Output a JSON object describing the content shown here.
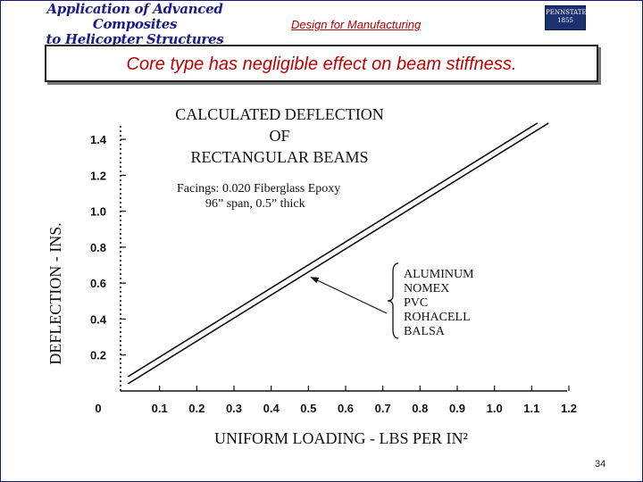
{
  "slide": {
    "course_title_line1": "Application of Advanced Composites",
    "course_title_line2": "to Helicopter Structures",
    "section_title": "Design for Manufacturing",
    "logo_text_line1": "PENNSTATE",
    "logo_text_line2": "1855",
    "headline": "Core type has negligible effect on beam stiffness.",
    "page_number": "34"
  },
  "colors": {
    "course_title": "#1a1a8c",
    "section_title": "#b00000",
    "headline": "#c00000",
    "logo_bg": "#1c3170",
    "ink": "#111111"
  },
  "chart_data": {
    "type": "line",
    "title_lines": [
      "CALCULATED DEFLECTION",
      "OF",
      "RECTANGULAR BEAMS"
    ],
    "note_lines": [
      "Facings: 0.020 Fiberglass Epoxy",
      "96” span, 0.5” thick"
    ],
    "xlabel": "UNIFORM LOADING - LBS PER IN²",
    "ylabel": "DEFLECTION - INS.",
    "x_ticks": [
      0.1,
      0.2,
      0.3,
      0.4,
      0.5,
      0.6,
      0.7,
      0.8,
      0.9,
      1.0,
      1.1,
      1.2
    ],
    "x_tick_labels": [
      "0.1",
      "0.2",
      "0.3",
      "0.4",
      "0.5",
      "0.6",
      "0.7",
      "0.8",
      "0.9",
      "1.0",
      "1.1",
      "1.2"
    ],
    "y_ticks": [
      0.2,
      0.4,
      0.6,
      0.8,
      1.0,
      1.2,
      1.4
    ],
    "y_tick_labels": [
      "0.2",
      "0.4",
      "0.6",
      "0.8",
      "1.0",
      "1.2",
      "1.4"
    ],
    "origin_label": "0",
    "xlim": [
      0,
      1.2
    ],
    "ylim": [
      0,
      1.48
    ],
    "series": [
      {
        "x": [
          0.02,
          1.15
        ],
        "y": [
          0.04,
          1.49
        ]
      },
      {
        "x": [
          0.02,
          1.12
        ],
        "y": [
          0.08,
          1.49
        ]
      }
    ],
    "legend_entries": [
      "ALUMINUM",
      "NOMEX",
      "PVC",
      "ROHACELL",
      "BALSA"
    ],
    "legend_pointer_target": {
      "x": 0.5,
      "y": 0.64
    }
  }
}
